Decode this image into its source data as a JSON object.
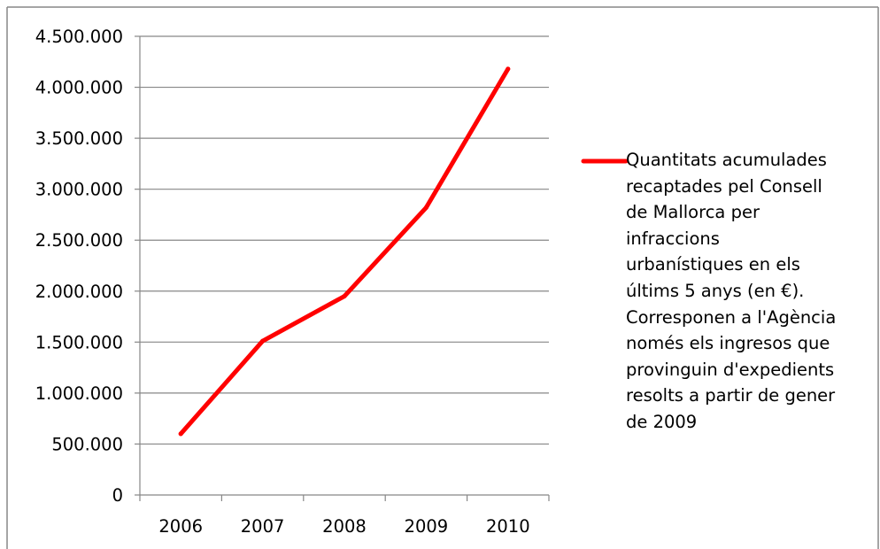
{
  "chart_data": {
    "type": "line",
    "categories": [
      "2006",
      "2007",
      "2008",
      "2009",
      "2010"
    ],
    "series": [
      {
        "name": "Quantitats acumulades recaptades pel Consell de Mallorca per infraccions urbanístiques en els últims 5 anys (en €). Corresponen a l'Agència només els ingresos que provinguin d'expedients resolts a partir de gener de 2009",
        "values": [
          600000,
          1510000,
          1950000,
          2820000,
          4180000
        ],
        "color": "#ff0000"
      }
    ],
    "ylim": [
      0,
      4500000
    ],
    "yticks": [
      0,
      500000,
      1000000,
      1500000,
      2000000,
      2500000,
      3000000,
      3500000,
      4000000,
      4500000
    ],
    "ytick_labels": [
      "0",
      "500.000",
      "1.000.000",
      "1.500.000",
      "2.000.000",
      "2.500.000",
      "3.000.000",
      "3.500.000",
      "4.000.000",
      "4.500.000"
    ],
    "grid": true,
    "legend_position": "right",
    "title": "",
    "xlabel": "",
    "ylabel": ""
  },
  "legend": {
    "text": "Quantitats acumulades\nrecaptades pel Consell\nde Mallorca per\ninfraccions\nurbanístiques en els\núltims 5 anys (en €).\nCorresponen a l'Agència\nnomés els ingresos que\nprovinguin d'expedients\nresolts a partir de gener\nde 2009"
  }
}
